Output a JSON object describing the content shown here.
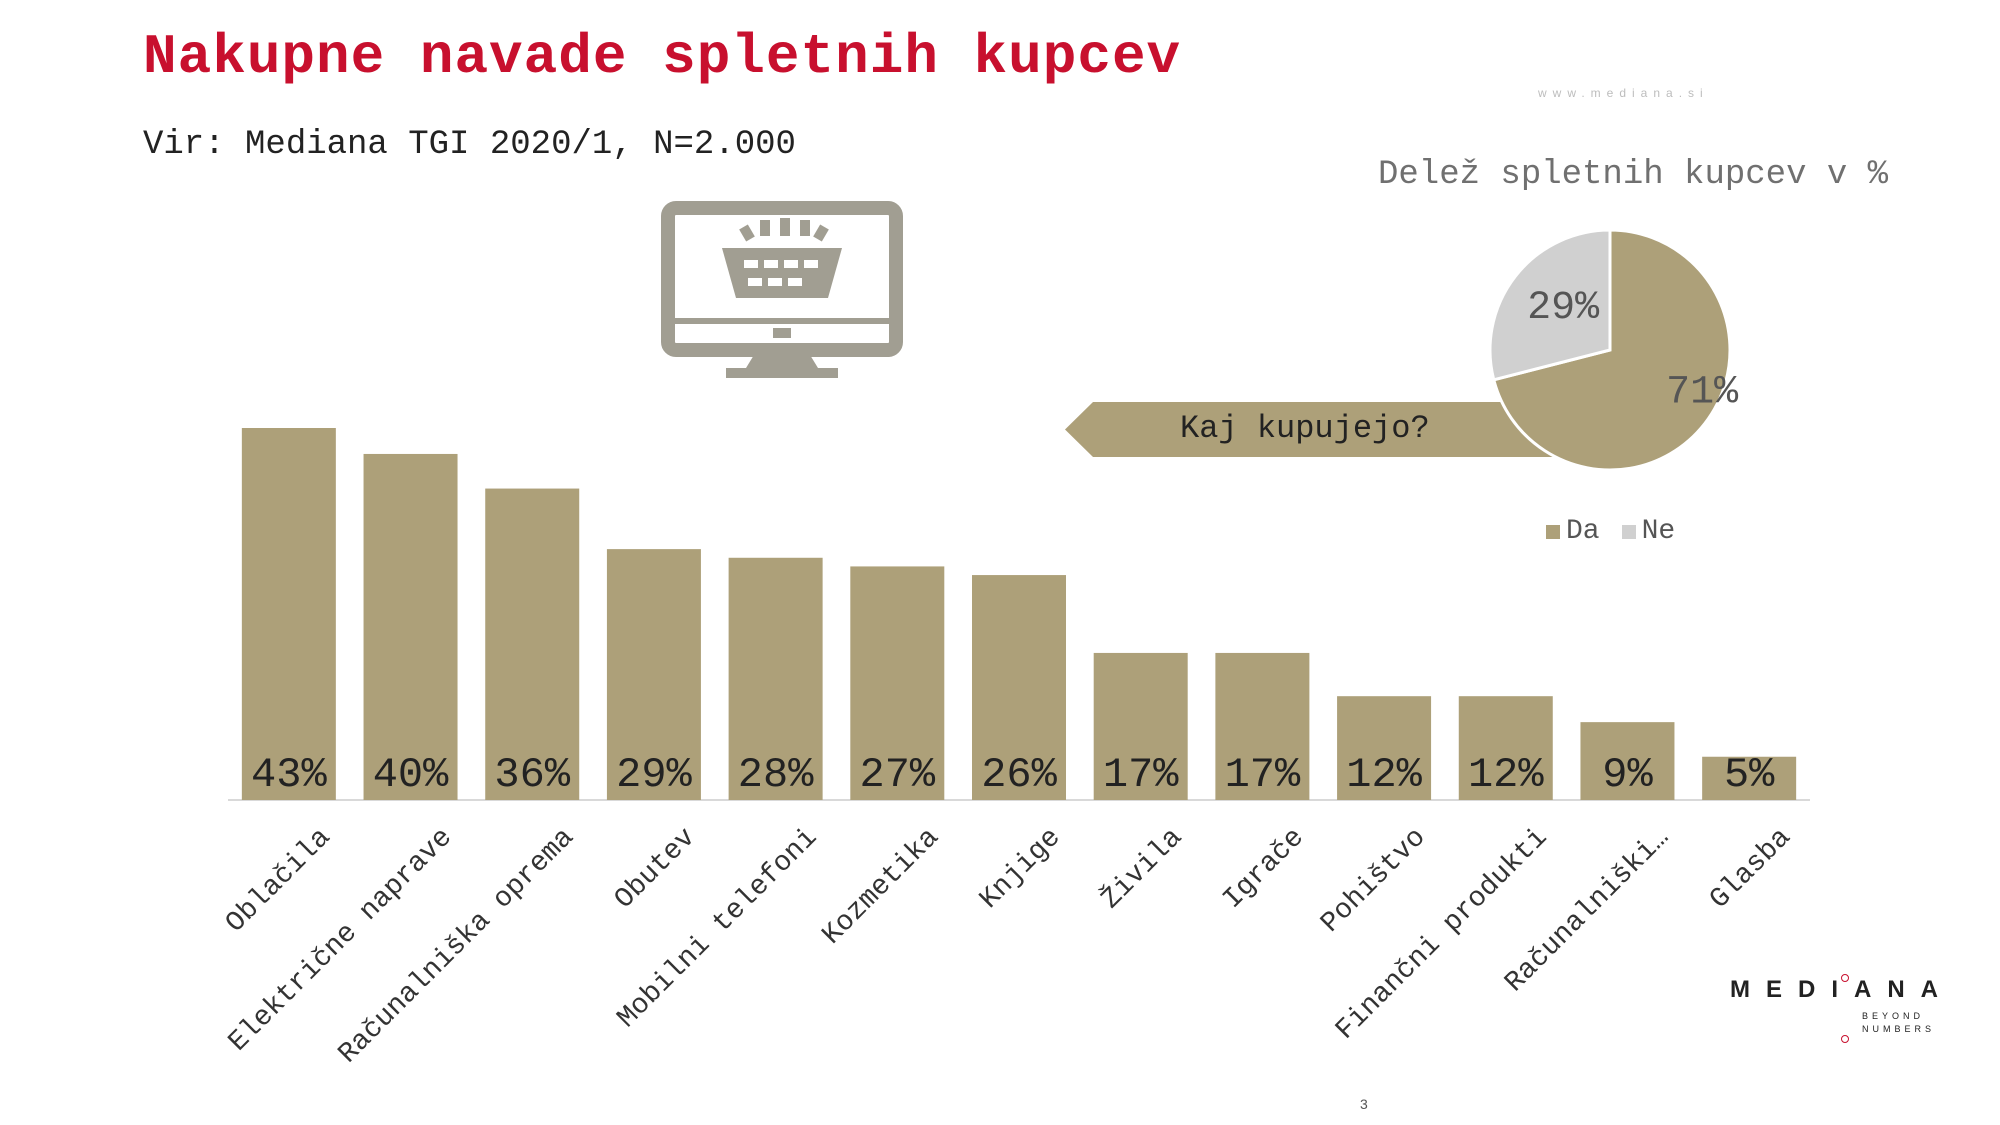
{
  "slide": {
    "title": "Nakupne navade spletnih kupcev",
    "subtitle": "Vir: Mediana TGI 2020/1, N=2.000",
    "url": "www.mediana.si",
    "page_number": "3"
  },
  "logo": {
    "name": "MEDIANA",
    "tagline": "BEYOND\nNUMBERS"
  },
  "icons": {
    "computer": "computer-basket-icon"
  },
  "colors": {
    "title": "#c8102e",
    "bar": "#ada079",
    "pie_yes": "#ada079",
    "pie_no": "#d0d0d0"
  },
  "callout": {
    "label": "Kaj kupujejo?"
  },
  "pie": {
    "title": "Delež spletnih kupcev v %",
    "slices": [
      {
        "name": "Da",
        "value": 71,
        "label": "71%"
      },
      {
        "name": "Ne",
        "value": 29,
        "label": "29%"
      }
    ]
  },
  "chart_data": [
    {
      "type": "bar",
      "categories": [
        "Oblačila",
        "Električne naprave",
        "Računalniška oprema",
        "Obutev",
        "Mobilni telefoni",
        "Kozmetika",
        "Knjige",
        "Živila",
        "Igrače",
        "Pohištvo",
        "Finančni produkti",
        "Računalniški…",
        "Glasba"
      ],
      "values": [
        43,
        40,
        36,
        29,
        28,
        27,
        26,
        17,
        17,
        12,
        12,
        9,
        5
      ],
      "labels": [
        "43%",
        "40%",
        "36%",
        "29%",
        "28%",
        "27%",
        "26%",
        "17%",
        "17%",
        "12%",
        "12%",
        "9%",
        "5%"
      ],
      "ylim": [
        0,
        43
      ],
      "grid": false
    },
    {
      "type": "pie",
      "title": "Delež spletnih kupcev v %",
      "categories": [
        "Da",
        "Ne"
      ],
      "values": [
        71,
        29
      ],
      "legend": "bottom"
    }
  ]
}
